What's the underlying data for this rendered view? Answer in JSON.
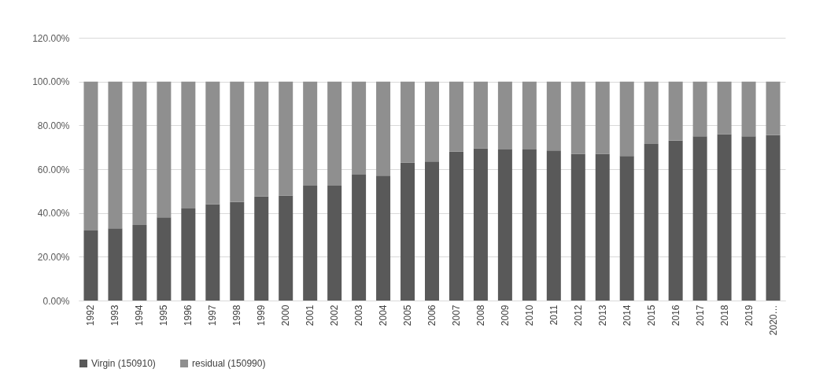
{
  "chart_data": {
    "type": "bar",
    "stacked": true,
    "categories": [
      "1992",
      "1993",
      "1994",
      "1995",
      "1996",
      "1997",
      "1998",
      "1999",
      "2000",
      "2001",
      "2002",
      "2003",
      "2004",
      "2005",
      "2006",
      "2007",
      "2008",
      "2009",
      "2010",
      "2011",
      "2012",
      "2013",
      "2014",
      "2015",
      "2016",
      "2017",
      "2018",
      "2019",
      "2020…"
    ],
    "series": [
      {
        "name": "Virgin (150910)",
        "color": "#595959",
        "values": [
          32,
          33,
          34.5,
          38,
          42,
          44,
          45,
          47.5,
          48,
          52.5,
          52.5,
          57.5,
          57,
          63,
          63.5,
          68,
          69.5,
          69,
          69,
          68.5,
          67,
          67,
          66,
          71.5,
          73,
          75,
          76,
          75,
          75.5
        ]
      },
      {
        "name": "residual (150990)",
        "color": "#8f8f8f",
        "values": [
          68,
          67,
          65.5,
          62,
          58,
          56,
          55,
          52.5,
          52,
          47.5,
          47.5,
          42.5,
          43,
          37,
          36.5,
          32,
          30.5,
          31,
          31,
          31.5,
          33,
          33,
          34,
          28.5,
          27,
          25,
          24,
          25,
          24.5
        ]
      }
    ],
    "ylim": [
      0,
      120
    ],
    "yticks": [
      {
        "value": 0,
        "label": "0.00%"
      },
      {
        "value": 20,
        "label": "20.00%"
      },
      {
        "value": 40,
        "label": "40.00%"
      },
      {
        "value": 60,
        "label": "60.00%"
      },
      {
        "value": 80,
        "label": "80.00%"
      },
      {
        "value": 100,
        "label": "100.00%"
      },
      {
        "value": 120,
        "label": "120.00%"
      }
    ],
    "grid": "y",
    "legend": "bottom"
  }
}
